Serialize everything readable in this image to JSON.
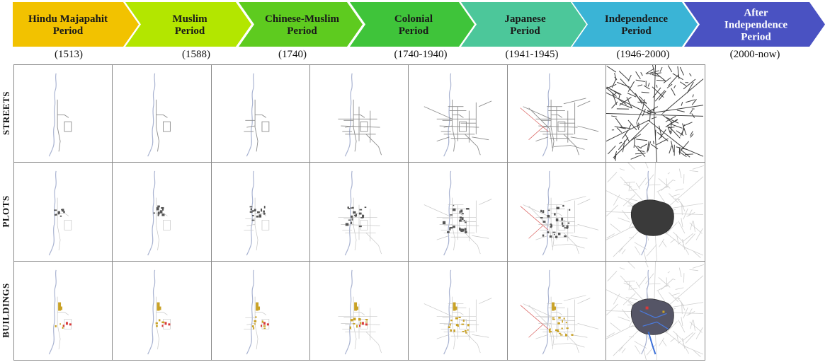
{
  "periods": [
    {
      "name_line1": "Hindu Majapahit",
      "name_line2": "Period",
      "name_line3": "",
      "years": "(1513)",
      "color": "#f2c200"
    },
    {
      "name_line1": "Muslim",
      "name_line2": "Period",
      "name_line3": "",
      "years": "(1588)",
      "color": "#b3e600"
    },
    {
      "name_line1": "Chinese-Muslim",
      "name_line2": "Period",
      "name_line3": "",
      "years": "(1740)",
      "color": "#5ecb1f"
    },
    {
      "name_line1": "Colonial",
      "name_line2": "Period",
      "name_line3": "",
      "years": "(1740-1940)",
      "color": "#3fc43a"
    },
    {
      "name_line1": "Japanese",
      "name_line2": "Period",
      "name_line3": "",
      "years": "(1941-1945)",
      "color": "#4cc79a"
    },
    {
      "name_line1": "Independence",
      "name_line2": "Period",
      "name_line3": "",
      "years": "(1946-2000)",
      "color": "#3ab4d6"
    },
    {
      "name_line1": "After",
      "name_line2": "Independence",
      "name_line3": "Period",
      "years": "(2000-now)",
      "color": "#4a52c2"
    }
  ],
  "rows": [
    {
      "label": "STREETS"
    },
    {
      "label": "PLOTS"
    },
    {
      "label": "BUILDINGS"
    }
  ],
  "colors": {
    "river": "#a9b3d1",
    "street": "#8c8c8c",
    "plot": "#555555",
    "building_yellow": "#c9a227",
    "building_red": "#d83a3a",
    "street_red": "#d9605e"
  }
}
